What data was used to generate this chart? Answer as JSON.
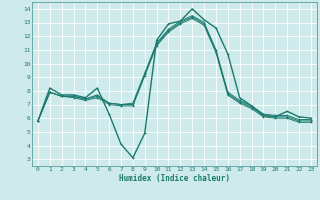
{
  "xlabel": "Humidex (Indice chaleur)",
  "ylabel": "",
  "xlim": [
    -0.5,
    23.5
  ],
  "ylim": [
    2.5,
    14.5
  ],
  "yticks": [
    3,
    4,
    5,
    6,
    7,
    8,
    9,
    10,
    11,
    12,
    13,
    14
  ],
  "xticks": [
    0,
    1,
    2,
    3,
    4,
    5,
    6,
    7,
    8,
    9,
    10,
    11,
    12,
    13,
    14,
    15,
    16,
    17,
    18,
    19,
    20,
    21,
    22,
    23
  ],
  "bg_color": "#ceeaea",
  "grid_color": "#ffffff",
  "line_color": "#1a7a6e",
  "series": [
    [
      5.8,
      8.2,
      7.7,
      7.7,
      7.5,
      8.2,
      6.3,
      4.1,
      3.1,
      4.9,
      11.7,
      12.9,
      13.1,
      14.0,
      13.2,
      12.6,
      10.7,
      7.5,
      6.9,
      6.2,
      6.1,
      6.5,
      6.1,
      6.0
    ],
    [
      5.8,
      7.9,
      7.6,
      7.6,
      7.4,
      7.7,
      7.1,
      7.0,
      7.1,
      9.3,
      11.5,
      12.5,
      13.1,
      13.5,
      13.0,
      11.0,
      7.9,
      7.3,
      6.9,
      6.3,
      6.2,
      6.2,
      5.9,
      5.9
    ],
    [
      5.8,
      7.9,
      7.6,
      7.6,
      7.4,
      7.6,
      7.1,
      7.0,
      7.0,
      9.2,
      11.4,
      12.4,
      13.0,
      13.4,
      12.9,
      10.9,
      7.8,
      7.2,
      6.8,
      6.2,
      6.1,
      6.1,
      5.8,
      5.8
    ],
    [
      5.8,
      7.9,
      7.6,
      7.5,
      7.3,
      7.5,
      7.0,
      6.9,
      6.9,
      9.1,
      11.3,
      12.3,
      12.9,
      13.3,
      12.8,
      10.8,
      7.7,
      7.1,
      6.7,
      6.1,
      6.0,
      6.0,
      5.7,
      5.7
    ]
  ]
}
